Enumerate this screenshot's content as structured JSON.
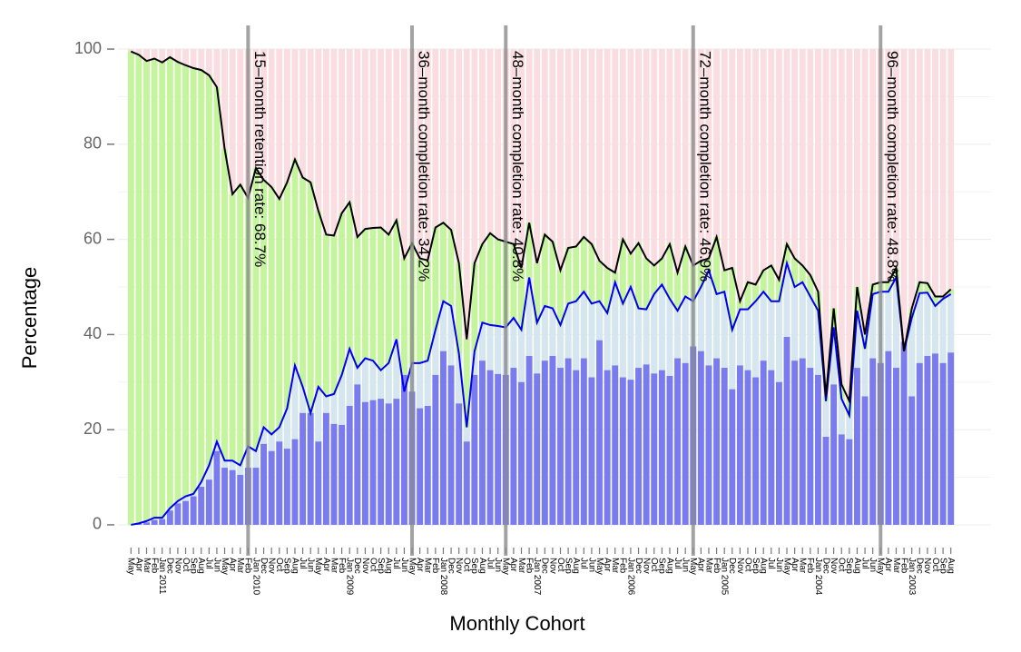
{
  "chart_data": {
    "type": "bar",
    "xlabel": "Monthly Cohort",
    "ylabel": "Percentage",
    "ylim": [
      -6.5,
      106.5
    ],
    "yticks": [
      0,
      20,
      40,
      60,
      80,
      100
    ],
    "grid": true,
    "categories": [
      "May",
      "Apr",
      "Mar",
      "Feb",
      "Jan 2011",
      "Dec",
      "Nov",
      "Oct",
      "Sep",
      "Aug",
      "Jul",
      "Jun",
      "May",
      "Apr",
      "Mar",
      "Feb",
      "Jan 2010",
      "Dec",
      "Nov",
      "Oct",
      "Sep",
      "Aug",
      "Jul",
      "Jun",
      "May",
      "Apr",
      "Mar",
      "Feb",
      "Jan 2009",
      "Dec",
      "Nov",
      "Oct",
      "Sep",
      "Aug",
      "Jul",
      "Jun",
      "May",
      "Apr",
      "Mar",
      "Feb",
      "Jan 2008",
      "Dec",
      "Nov",
      "Oct",
      "Sep",
      "Aug",
      "Jul",
      "Jun",
      "May",
      "Apr",
      "Mar",
      "Feb",
      "Jan 2007",
      "Dec",
      "Nov",
      "Oct",
      "Sep",
      "Aug",
      "Jul",
      "Jun",
      "May",
      "Apr",
      "Mar",
      "Feb",
      "Jan 2006",
      "Dec",
      "Nov",
      "Oct",
      "Sep",
      "Aug",
      "Jul",
      "Jun",
      "May",
      "Apr",
      "Mar",
      "Feb",
      "Jan 2005",
      "Dec",
      "Nov",
      "Oct",
      "Sep",
      "Aug",
      "Jul",
      "Jun",
      "May",
      "Apr",
      "Mar",
      "Feb",
      "Jan 2004",
      "Dec",
      "Nov",
      "Oct",
      "Sep",
      "Aug",
      "Jul",
      "Jun",
      "May",
      "Apr",
      "Mar",
      "Feb",
      "Jan 2003",
      "Dec",
      "Nov",
      "Oct",
      "Sep",
      "Aug"
    ],
    "series": [
      {
        "type": "bar",
        "color": "#7b7bf0",
        "values": [
          0,
          0.2,
          0.5,
          1,
          1.2,
          3,
          4.5,
          5,
          6,
          8,
          9.5,
          15.5,
          12,
          11.5,
          10.5,
          12,
          12,
          17,
          15.5,
          17.5,
          16,
          18,
          23.5,
          23.5,
          17.5,
          23.5,
          21.2,
          21,
          25,
          29.5,
          25.8,
          26.2,
          26.5,
          25.5,
          26.5,
          31.5,
          28,
          24.5,
          25,
          31.5,
          36.5,
          33.5,
          25.5,
          17.5,
          31.5,
          34.5,
          32.5,
          31.7,
          31.5,
          33,
          30,
          35.5,
          31.8,
          34.5,
          35.5,
          33,
          35,
          32.5,
          35,
          31,
          38.8,
          32.5,
          33.5,
          31,
          30.5,
          33,
          33.7,
          31.8,
          32.5,
          31.3,
          35,
          34,
          37.5,
          36.5,
          33.5,
          35,
          33,
          28.5,
          33.5,
          32.5,
          31,
          34.5,
          32.5,
          30,
          39.5,
          34.5,
          35,
          33,
          31.5,
          18.5,
          29.5,
          19,
          18,
          33,
          27,
          35,
          34,
          36.5,
          33,
          38.5,
          27,
          34,
          35.5,
          36,
          34,
          36.2
        ]
      },
      {
        "type": "line",
        "color": "#0000ee",
        "fill": "#d6e6f0",
        "values": [
          0,
          0.3,
          0.8,
          1.5,
          1.5,
          3.5,
          5,
          6,
          6.5,
          9,
          12.5,
          17.5,
          13.5,
          13.5,
          12.5,
          16.5,
          15.5,
          20.5,
          19,
          20.5,
          24.5,
          33.5,
          29,
          23.5,
          29,
          27,
          27.5,
          31.5,
          37,
          33,
          35,
          34.5,
          32.5,
          34,
          39,
          28,
          34,
          34,
          34.5,
          41,
          47,
          46,
          36,
          20.5,
          36.5,
          42.5,
          42,
          41.8,
          41.5,
          43.5,
          41,
          52,
          42.5,
          46,
          45.5,
          42,
          46.5,
          47,
          49,
          46.5,
          47,
          44.5,
          51,
          46.5,
          50,
          45.5,
          45.3,
          48.5,
          50.5,
          47.5,
          45,
          48,
          47,
          50,
          53.5,
          48.5,
          49,
          41,
          45.3,
          45.3,
          47,
          49,
          47,
          47,
          55,
          50,
          51,
          48,
          45,
          26,
          41.5,
          26.5,
          23,
          45,
          37,
          48.5,
          49,
          49,
          52,
          36.5,
          43.5,
          48.7,
          48.8,
          46,
          47.5,
          48.5
        ]
      },
      {
        "type": "line",
        "color": "#000000",
        "fill": "#c4f59c",
        "values": [
          99.5,
          98.8,
          97.5,
          98,
          97.2,
          98.3,
          97.3,
          96.6,
          96,
          95.6,
          94.5,
          92,
          79,
          69.5,
          71.5,
          68.7,
          75,
          72.5,
          71,
          68.5,
          72,
          76.8,
          73,
          72,
          66,
          61,
          60.8,
          65.5,
          67.8,
          60.5,
          62.2,
          62.4,
          62.5,
          61,
          64,
          56,
          59.2,
          56,
          55.6,
          62.5,
          63.5,
          62,
          55,
          39,
          55,
          59,
          61.3,
          60,
          59.5,
          59,
          54,
          63.5,
          55,
          61,
          59.5,
          53.5,
          58.2,
          58.5,
          60.5,
          59,
          55.5,
          54,
          53,
          60,
          57,
          59.2,
          56,
          54.5,
          56,
          59,
          53,
          58.5,
          54.5,
          55.5,
          56,
          60.5,
          53.5,
          54,
          47,
          51,
          50.5,
          53.5,
          54.5,
          51.5,
          59,
          56,
          54.5,
          52.5,
          49,
          27,
          45.5,
          29.5,
          26,
          50,
          40,
          50.5,
          51,
          51,
          54,
          36.5,
          45.5,
          51,
          50.8,
          48,
          48,
          49.5
        ]
      }
    ],
    "background_color": "#f9dde0",
    "annotations": [
      {
        "months": 15,
        "text": "15–month retention rate: 68.7%"
      },
      {
        "months": 36,
        "text": "36–month completion rate: 34.2%"
      },
      {
        "months": 48,
        "text": "48–month completion rate: 40.8%"
      },
      {
        "months": 72,
        "text": "72–month completion rate: 46.9%"
      },
      {
        "months": 96,
        "text": "96–month completion rate: 48.8%"
      }
    ]
  }
}
